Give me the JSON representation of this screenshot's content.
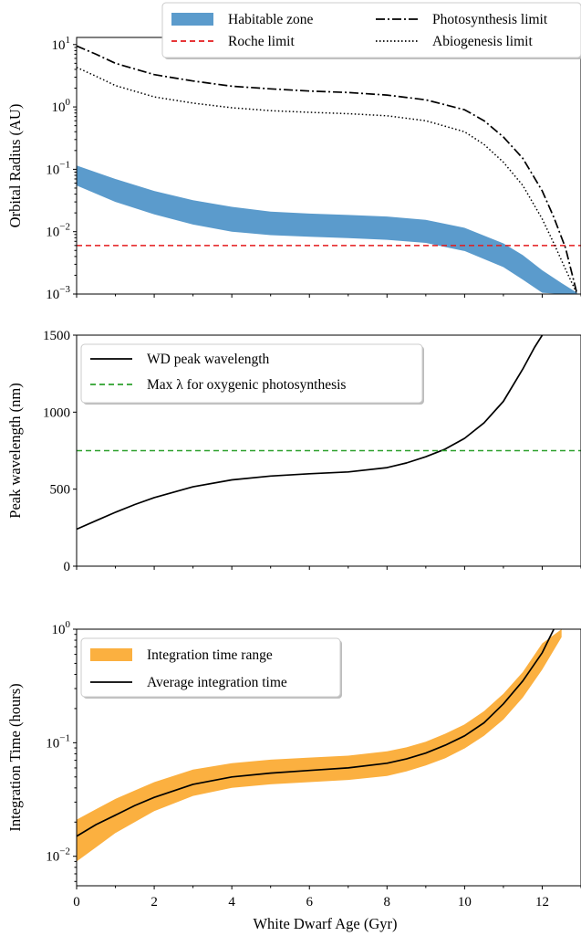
{
  "chart_data": [
    {
      "type": "line",
      "ylabel": "Orbital Radius (AU)",
      "xlabel": "",
      "xlim": [
        0,
        13
      ],
      "ylim": [
        0.001,
        13
      ],
      "yscale": "log",
      "grid": false,
      "legend_placement": "top-right",
      "x_ticks": [],
      "y_ticks": [
        {
          "value": 10,
          "base": "10",
          "exp": "1"
        },
        {
          "value": 1,
          "base": "10",
          "exp": "0"
        },
        {
          "value": 0.1,
          "base": "10",
          "exp": "−1"
        },
        {
          "value": 0.01,
          "base": "10",
          "exp": "−2"
        },
        {
          "value": 0.001,
          "base": "10",
          "exp": "−3"
        }
      ],
      "legend": [
        {
          "label": "Habitable zone",
          "kind": "patch",
          "color": "#5b9bcc"
        },
        {
          "label": "Photosynthesis limit",
          "kind": "line",
          "color": "#000000",
          "dash": "10,3,2,3"
        },
        {
          "label": "Roche limit",
          "kind": "line",
          "color": "#e41a1c",
          "dash": "6,4"
        },
        {
          "label": "Abiogenesis limit",
          "kind": "line",
          "color": "#000000",
          "dash": "1.5,2.5"
        }
      ],
      "series": [
        {
          "name": "Habitable zone",
          "kind": "band",
          "color": "#5b9bcc",
          "x": [
            0,
            1,
            2,
            3,
            4,
            5,
            6,
            7,
            8,
            9,
            10,
            11,
            11.5,
            12,
            12.5,
            12.9
          ],
          "y_upper": [
            0.115,
            0.07,
            0.045,
            0.032,
            0.025,
            0.021,
            0.0195,
            0.0185,
            0.0175,
            0.0155,
            0.0115,
            0.0065,
            0.0042,
            0.0024,
            0.0015,
            0.00105
          ],
          "y_lower": [
            0.055,
            0.03,
            0.019,
            0.013,
            0.01,
            0.0088,
            0.0083,
            0.0079,
            0.0074,
            0.0066,
            0.0049,
            0.0027,
            0.0017,
            0.00105,
            0.001,
            0.001
          ]
        },
        {
          "name": "Photosynthesis limit",
          "kind": "line",
          "color": "#000000",
          "dash": "10,3,2,3",
          "stroke_width": 1.7,
          "x": [
            0,
            0.5,
            1,
            2,
            3,
            4,
            5,
            6,
            7,
            8,
            9,
            10,
            10.5,
            11,
            11.5,
            12,
            12.3,
            12.6,
            12.9
          ],
          "y": [
            9.5,
            7.0,
            5.0,
            3.3,
            2.6,
            2.15,
            1.95,
            1.8,
            1.7,
            1.55,
            1.3,
            0.9,
            0.6,
            0.33,
            0.15,
            0.045,
            0.017,
            0.0055,
            0.001
          ]
        },
        {
          "name": "Roche limit",
          "kind": "hline",
          "color": "#e41a1c",
          "dash": "6,4",
          "stroke_width": 1.5,
          "y": 0.006
        },
        {
          "name": "Abiogenesis limit",
          "kind": "line",
          "color": "#000000",
          "dash": "1.5,2.5",
          "stroke_width": 1.5,
          "x": [
            0,
            0.5,
            1,
            2,
            3,
            4,
            5,
            6,
            7,
            8,
            9,
            10,
            10.5,
            11,
            11.5,
            12,
            12.3,
            12.6,
            12.9
          ],
          "y": [
            4.3,
            3.1,
            2.2,
            1.45,
            1.15,
            0.97,
            0.87,
            0.82,
            0.78,
            0.72,
            0.6,
            0.4,
            0.25,
            0.13,
            0.055,
            0.016,
            0.0065,
            0.0025,
            0.001
          ]
        }
      ]
    },
    {
      "type": "line",
      "ylabel": "Peak wavelength (nm)",
      "xlabel": "",
      "xlim": [
        0,
        13
      ],
      "ylim": [
        0,
        1500
      ],
      "yscale": "linear",
      "grid": false,
      "legend_placement": "top-left",
      "x_ticks": [],
      "y_ticks": [
        {
          "value": 0,
          "label": "0"
        },
        {
          "value": 500,
          "label": "500"
        },
        {
          "value": 1000,
          "label": "1000"
        },
        {
          "value": 1500,
          "label": "1500"
        }
      ],
      "legend": [
        {
          "label": "WD peak wavelength",
          "kind": "line",
          "color": "#000000",
          "dash": ""
        },
        {
          "label": "Max λ for oxygenic photosynthesis",
          "kind": "line",
          "color": "#2ca02c",
          "dash": "6,4"
        }
      ],
      "series": [
        {
          "name": "WD peak wavelength",
          "kind": "line",
          "color": "#000000",
          "dash": "",
          "stroke_width": 1.7,
          "x": [
            0,
            0.5,
            1,
            1.5,
            2,
            3,
            4,
            5,
            6,
            7,
            8,
            8.5,
            9,
            9.5,
            10,
            10.5,
            11,
            11.5,
            11.8,
            12.0
          ],
          "y": [
            240,
            295,
            350,
            400,
            445,
            515,
            560,
            585,
            600,
            612,
            640,
            670,
            710,
            760,
            830,
            930,
            1070,
            1280,
            1420,
            1500
          ]
        },
        {
          "name": "Max λ for oxygenic photosynthesis",
          "kind": "hline",
          "color": "#2ca02c",
          "dash": "6,4",
          "stroke_width": 1.5,
          "y": 750
        }
      ]
    },
    {
      "type": "area",
      "ylabel": "Integration Time (hours)",
      "xlabel": "White Dwarf Age (Gyr)",
      "xlim": [
        0,
        13
      ],
      "ylim": [
        0.0055,
        1
      ],
      "yscale": "log",
      "grid": false,
      "legend_placement": "top-left",
      "x_ticks": [
        {
          "value": 0,
          "label": "0"
        },
        {
          "value": 2,
          "label": "2"
        },
        {
          "value": 4,
          "label": "4"
        },
        {
          "value": 6,
          "label": "6"
        },
        {
          "value": 8,
          "label": "8"
        },
        {
          "value": 10,
          "label": "10"
        },
        {
          "value": 12,
          "label": "12"
        }
      ],
      "y_ticks": [
        {
          "value": 1,
          "base": "10",
          "exp": "0"
        },
        {
          "value": 0.1,
          "base": "10",
          "exp": "−1"
        },
        {
          "value": 0.01,
          "base": "10",
          "exp": "−2"
        }
      ],
      "legend": [
        {
          "label": "Integration time range",
          "kind": "patch",
          "color": "#fbb040"
        },
        {
          "label": "Average integration time",
          "kind": "line",
          "color": "#000000",
          "dash": ""
        }
      ],
      "series": [
        {
          "name": "Integration time range",
          "kind": "band",
          "color": "#fbb040",
          "x": [
            0,
            0.5,
            1,
            1.5,
            2,
            3,
            4,
            5,
            6,
            7,
            8,
            8.5,
            9,
            9.5,
            10,
            10.5,
            11,
            11.5,
            12,
            12.5
          ],
          "y_upper": [
            0.021,
            0.026,
            0.032,
            0.038,
            0.045,
            0.058,
            0.066,
            0.071,
            0.074,
            0.077,
            0.084,
            0.091,
            0.102,
            0.12,
            0.145,
            0.19,
            0.27,
            0.42,
            0.75,
            1.0
          ],
          "y_lower": [
            0.009,
            0.012,
            0.016,
            0.02,
            0.025,
            0.034,
            0.04,
            0.043,
            0.045,
            0.047,
            0.051,
            0.056,
            0.063,
            0.073,
            0.089,
            0.115,
            0.16,
            0.25,
            0.44,
            0.85
          ]
        },
        {
          "name": "Average integration time",
          "kind": "line",
          "color": "#000000",
          "dash": "",
          "stroke_width": 1.7,
          "x": [
            0,
            0.5,
            1,
            1.5,
            2,
            3,
            4,
            5,
            6,
            7,
            8,
            8.5,
            9,
            9.5,
            10,
            10.5,
            11,
            11.5,
            12,
            12.3
          ],
          "y": [
            0.015,
            0.019,
            0.023,
            0.028,
            0.033,
            0.043,
            0.05,
            0.054,
            0.057,
            0.06,
            0.066,
            0.072,
            0.081,
            0.095,
            0.115,
            0.15,
            0.22,
            0.35,
            0.62,
            1.0
          ]
        }
      ]
    }
  ]
}
